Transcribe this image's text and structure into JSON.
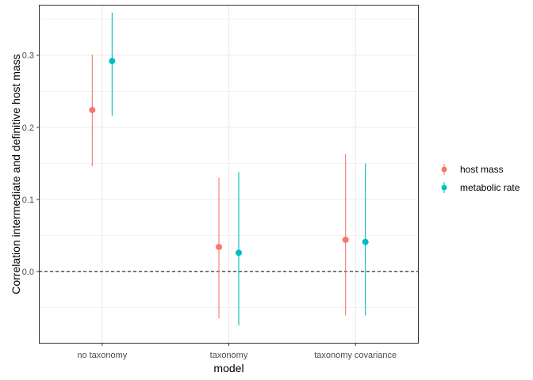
{
  "chart_data": {
    "type": "scatter",
    "subtype": "pointrange",
    "xlabel": "model",
    "ylabel": "Correlation intermediate and definitive host mass",
    "categories": [
      "no taxonomy",
      "taxonomy",
      "taxonomy covariance"
    ],
    "ylim": [
      -0.1,
      0.37
    ],
    "yticks": [
      0.0,
      0.1,
      0.2,
      0.3
    ],
    "ytick_labels": [
      "0.0",
      "0.1",
      "0.2",
      "0.3"
    ],
    "grid": true,
    "reference_line": {
      "y": 0.0,
      "style": "dashed"
    },
    "legend": {
      "placement": "right"
    },
    "series": [
      {
        "name": "host mass",
        "color": "#F8766D",
        "values": [
          0.224,
          0.034,
          0.044
        ],
        "lower": [
          0.146,
          -0.065,
          -0.061
        ],
        "upper": [
          0.301,
          0.13,
          0.163
        ]
      },
      {
        "name": "metabolic rate",
        "color": "#00BFC4",
        "values": [
          0.292,
          0.026,
          0.041
        ],
        "lower": [
          0.216,
          -0.075,
          -0.061
        ],
        "upper": [
          0.359,
          0.138,
          0.15
        ]
      }
    ]
  }
}
